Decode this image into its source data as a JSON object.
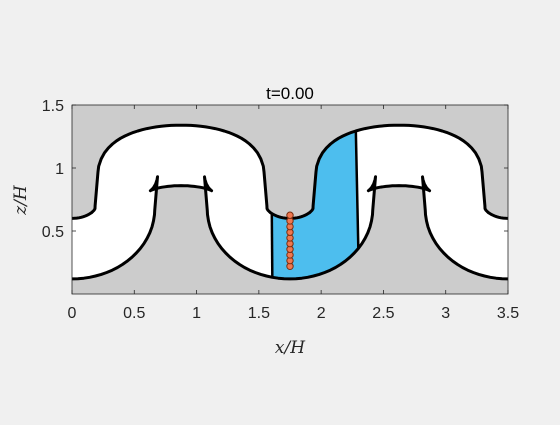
{
  "figure": {
    "background": "#f0f0f0"
  },
  "chart_data": {
    "type": "diagram-plot",
    "title": "t=0.00",
    "xlabel": "x/H",
    "ylabel": "z/H",
    "xlim": [
      0,
      3.5
    ],
    "ylim": [
      0,
      1.5
    ],
    "xticks": [
      0,
      0.5,
      1,
      1.5,
      2,
      2.5,
      3,
      3.5
    ],
    "xtick_labels": [
      "0",
      "0.5",
      "1",
      "1.5",
      "2",
      "2.5",
      "3",
      "3.5"
    ],
    "yticks": [
      0.5,
      1,
      1.5
    ],
    "ytick_labels": [
      "0.5",
      "1",
      "1.5"
    ],
    "grid": false,
    "colors": {
      "solid_region": "#cccccc",
      "fluid_channel": "#ffffff",
      "highlight_region": "#4dbeee",
      "boundary": "#000000",
      "particles": "#f07850"
    },
    "channel_period": 1.75,
    "wall_thickness": 0.5,
    "particles": {
      "x": 1.75,
      "z": [
        0.22,
        0.265,
        0.31,
        0.355,
        0.4,
        0.445,
        0.49,
        0.535,
        0.58,
        0.625
      ]
    },
    "highlight": {
      "x_left": 1.6,
      "x_right": 2.3
    }
  }
}
